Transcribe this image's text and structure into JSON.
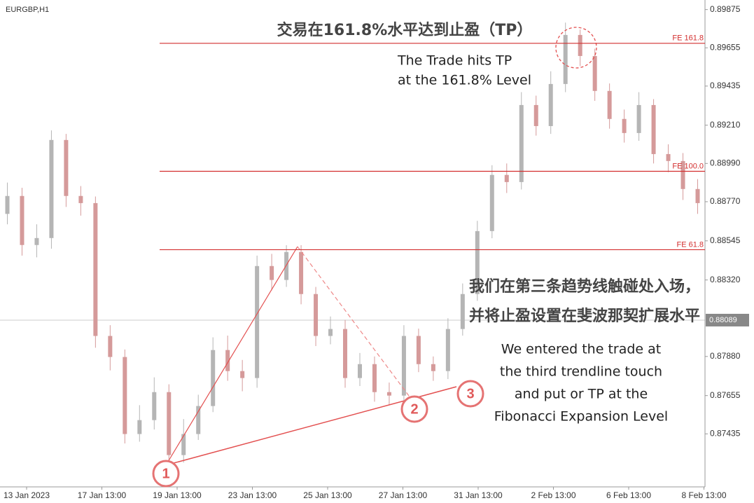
{
  "chart_data": {
    "type": "candlestick",
    "symbol": "EURGBP,H1",
    "title": "交易在161.8%水平达到止盈（TP）",
    "note_tp": [
      "The Trade hits TP",
      "at the 161.8% Level"
    ],
    "note_cn": [
      "我们在第三条趋势线触碰处入场，",
      "并将止盈设置在斐波那契扩展水平"
    ],
    "note_entry": [
      "We entered the trade at",
      "the third trendline touch",
      "and put or TP at the",
      "Fibonacci Expansion Level"
    ],
    "markers": [
      "1",
      "2",
      "3"
    ],
    "up_color": "#b5b5b5",
    "down_color": "#d59a9a",
    "level_color": "#d32f2f",
    "ylim": [
      0.8713,
      0.8993
    ],
    "yticks": [
      0.89875,
      0.89655,
      0.89435,
      {
        "value": 0.8921,
        "label": "0.89210"
      },
      {
        "value": 0.8899,
        "label": "0.88990"
      },
      {
        "value": 0.8877,
        "label": "0.88770"
      },
      0.88545,
      {
        "value": 0.8832,
        "label": "0.88320"
      },
      {
        "value": 0.8788,
        "label": "0.87880"
      },
      0.87655,
      0.87435
    ],
    "current_price": 0.88089,
    "levels": [
      {
        "label": "FE 161.8",
        "value": 0.89681
      },
      {
        "label": "FE 100.0",
        "value": 0.88945
      },
      {
        "label": "FE 61.8",
        "value": 0.88494
      }
    ],
    "time_labels": [
      "13 Jan 2023",
      "17 Jan 13:00",
      "19 Jan 13:00",
      "23 Jan 13:00",
      "25 Jan 13:00",
      "27 Jan 13:00",
      "31 Jan 13:00",
      "2 Feb 13:00",
      "6 Feb 13:00",
      "8 Feb 13:00"
    ],
    "open": [
      0.887,
      0.88803,
      0.88521,
      0.88561,
      0.89125,
      0.88803,
      0.88762,
      0.87998,
      0.87877,
      0.87434,
      0.87514,
      0.87675,
      0.87313,
      0.87434,
      0.87595,
      0.87917,
      0.87796,
      0.87756,
      0.884,
      0.8832,
      0.88481,
      0.88239,
      0.87998,
      0.88038,
      0.87756,
      0.87836,
      0.87675,
      0.87655,
      0.87998,
      0.87836,
      0.87796,
      0.88038,
      0.88239,
      0.88601,
      0.88924,
      0.88883,
      0.89326,
      0.89205,
      0.89447,
      0.89729,
      0.89608,
      0.89407,
      0.89246,
      0.89165,
      0.89326,
      0.89044,
      0.89004,
      0.88843
    ],
    "high": [
      0.8888,
      0.8885,
      0.8864,
      0.8918,
      0.8916,
      0.8886,
      0.888,
      0.8806,
      0.8792,
      0.876,
      0.8776,
      0.8772,
      0.8752,
      0.8766,
      0.8799,
      0.88,
      0.8786,
      0.8846,
      0.8847,
      0.8852,
      0.8852,
      0.8828,
      0.8811,
      0.8809,
      0.879,
      0.8788,
      0.8773,
      0.8806,
      0.8804,
      0.8788,
      0.881,
      0.883,
      0.8866,
      0.8898,
      0.8899,
      0.894,
      0.8938,
      0.8952,
      0.898,
      0.8976,
      0.8965,
      0.8945,
      0.893,
      0.894,
      0.8936,
      0.891,
      0.8905,
      0.889
    ],
    "low": [
      0.8864,
      0.8846,
      0.8845,
      0.885,
      0.8874,
      0.8869,
      0.8793,
      0.878,
      0.8738,
      0.8739,
      0.8746,
      0.8725,
      0.8727,
      0.874,
      0.8756,
      0.8774,
      0.8768,
      0.877,
      0.8826,
      0.8828,
      0.8818,
      0.8794,
      0.8795,
      0.877,
      0.8771,
      0.8762,
      0.876,
      0.8762,
      0.8779,
      0.8774,
      0.8775,
      0.88,
      0.882,
      0.8856,
      0.8882,
      0.8884,
      0.8915,
      0.8916,
      0.894,
      0.8955,
      0.8935,
      0.8919,
      0.8911,
      0.8912,
      0.8899,
      0.8894,
      0.8878,
      0.887
    ],
    "close": [
      0.88803,
      0.88521,
      0.88561,
      0.89125,
      0.88803,
      0.88762,
      0.87998,
      0.87877,
      0.87434,
      0.87514,
      0.87675,
      0.87313,
      0.87434,
      0.87595,
      0.87917,
      0.87796,
      0.87756,
      0.884,
      0.8832,
      0.88481,
      0.88239,
      0.87998,
      0.88038,
      0.87756,
      0.87836,
      0.87675,
      0.87655,
      0.87998,
      0.87836,
      0.87796,
      0.88038,
      0.88239,
      0.88601,
      0.88924,
      0.88883,
      0.89326,
      0.89205,
      0.89447,
      0.89729,
      0.89608,
      0.89407,
      0.89246,
      0.89165,
      0.89326,
      0.89044,
      0.89004,
      0.88843,
      0.88762
    ]
  }
}
